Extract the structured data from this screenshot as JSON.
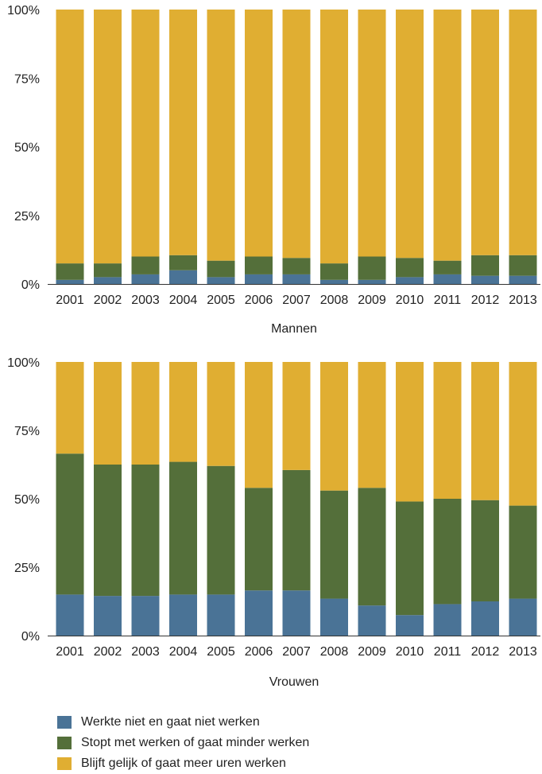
{
  "chart_data": [
    {
      "type": "bar",
      "stacked": true,
      "title": "",
      "xlabel": "Mannen",
      "ylabel": "",
      "ylim": [
        0,
        100
      ],
      "yticks": [
        "0%",
        "25%",
        "50%",
        "75%",
        "100%"
      ],
      "categories": [
        "2001",
        "2002",
        "2003",
        "2004",
        "2005",
        "2006",
        "2007",
        "2008",
        "2009",
        "2010",
        "2011",
        "2012",
        "2013"
      ],
      "series": [
        {
          "name": "Werkte niet en gaat niet werken",
          "color": "#4a7396",
          "values": [
            1.5,
            2.5,
            3.5,
            5.0,
            2.5,
            3.5,
            3.5,
            1.5,
            1.5,
            2.5,
            3.5,
            3.0,
            3.0
          ]
        },
        {
          "name": "Stopt met werken of gaat minder werken",
          "color": "#546f3a",
          "values": [
            6.0,
            5.0,
            6.5,
            5.5,
            6.0,
            6.5,
            6.0,
            6.0,
            8.5,
            7.0,
            5.0,
            7.5,
            7.5
          ]
        },
        {
          "name": "Blijft gelijk of gaat meer uren werken",
          "color": "#e0ae32",
          "values": [
            92.5,
            92.5,
            90.0,
            89.5,
            91.5,
            90.0,
            90.5,
            92.5,
            90.0,
            90.5,
            91.5,
            89.5,
            89.5
          ]
        }
      ]
    },
    {
      "type": "bar",
      "stacked": true,
      "title": "",
      "xlabel": "Vrouwen",
      "ylabel": "",
      "ylim": [
        0,
        100
      ],
      "yticks": [
        "0%",
        "25%",
        "50%",
        "75%",
        "100%"
      ],
      "categories": [
        "2001",
        "2002",
        "2003",
        "2004",
        "2005",
        "2006",
        "2007",
        "2008",
        "2009",
        "2010",
        "2011",
        "2012",
        "2013"
      ],
      "series": [
        {
          "name": "Werkte niet en gaat niet werken",
          "color": "#4a7396",
          "values": [
            15.0,
            14.5,
            14.5,
            15.0,
            15.0,
            16.5,
            16.5,
            13.5,
            11.0,
            7.5,
            11.5,
            12.5,
            13.5
          ]
        },
        {
          "name": "Stopt met werken of gaat minder werken",
          "color": "#546f3a",
          "values": [
            51.5,
            48.0,
            48.0,
            48.5,
            47.0,
            37.5,
            44.0,
            39.5,
            43.0,
            41.5,
            38.5,
            37.0,
            34.0
          ]
        },
        {
          "name": "Blijft gelijk of gaat meer uren werken",
          "color": "#e0ae32",
          "values": [
            33.5,
            37.5,
            37.5,
            36.5,
            38.0,
            46.0,
            39.5,
            47.0,
            46.0,
            51.0,
            50.0,
            50.5,
            52.5
          ]
        }
      ]
    }
  ],
  "legend": {
    "items": [
      {
        "label": "Werkte niet en gaat niet werken",
        "color": "#4a7396"
      },
      {
        "label": "Stopt met werken of gaat minder werken",
        "color": "#546f3a"
      },
      {
        "label": "Blijft gelijk of gaat meer uren werken",
        "color": "#e0ae32"
      }
    ]
  }
}
